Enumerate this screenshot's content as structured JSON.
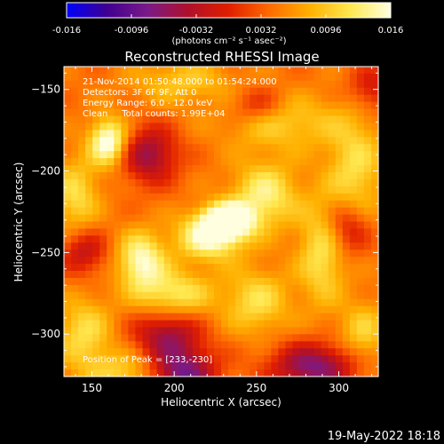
{
  "chart_data": {
    "type": "heatmap",
    "title": "Reconstructed RHESSI Image",
    "xlabel": "Heliocentric X (arcsec)",
    "ylabel": "Heliocentric Y (arcsec)",
    "xlim": [
      133,
      324
    ],
    "ylim": [
      -326,
      -136
    ],
    "x_ticks": [
      150,
      200,
      250,
      300
    ],
    "y_ticks": [
      -150,
      -200,
      -250,
      -300
    ],
    "colorbar": {
      "range": [
        -0.016,
        0.016
      ],
      "ticks": [
        "-0.016",
        "-0.0096",
        "-0.0032",
        "0.0032",
        "0.0096",
        "0.016"
      ],
      "units_label": "(photons cm⁻² s⁻¹ asec⁻²)",
      "colormap": [
        "#0000ff",
        "#400090",
        "#7a1a88",
        "#b0102a",
        "#e01e00",
        "#ff6a00",
        "#ffb000",
        "#ffe850",
        "#ffffe0"
      ]
    },
    "annotations": [
      "21-Nov-2014 01:50:48.000 to 01:54:24.000",
      "Detectors: 3F 6F 9F, Att 0",
      "Energy Range: 6.0 - 12.0 keV",
      "Clean     Total counts: 1.99E+04"
    ],
    "peak_label": "Position of Peak = [233,-230]",
    "peak": [
      233,
      -230
    ],
    "timestamp": "19-May-2022 18:18",
    "features": [
      {
        "x": 233,
        "y": -230,
        "intensity": 0.016,
        "sx": 10,
        "sy": 7
      },
      {
        "x": 222,
        "y": -240,
        "intensity": 0.012,
        "sx": 14,
        "sy": 10
      },
      {
        "x": 160,
        "y": -182,
        "intensity": 0.013,
        "sx": 8,
        "sy": 10
      },
      {
        "x": 255,
        "y": -215,
        "intensity": 0.009,
        "sx": 14,
        "sy": 14
      },
      {
        "x": 180,
        "y": -255,
        "intensity": 0.011,
        "sx": 10,
        "sy": 12
      },
      {
        "x": 200,
        "y": -275,
        "intensity": 0.008,
        "sx": 16,
        "sy": 10
      },
      {
        "x": 145,
        "y": -300,
        "intensity": 0.007,
        "sx": 12,
        "sy": 16
      },
      {
        "x": 290,
        "y": -250,
        "intensity": 0.008,
        "sx": 10,
        "sy": 22
      },
      {
        "x": 310,
        "y": -200,
        "intensity": 0.007,
        "sx": 12,
        "sy": 25
      },
      {
        "x": 250,
        "y": -280,
        "intensity": 0.007,
        "sx": 14,
        "sy": 14
      },
      {
        "x": 265,
        "y": -170,
        "intensity": 0.006,
        "sx": 25,
        "sy": 12
      },
      {
        "x": 140,
        "y": -215,
        "intensity": 0.007,
        "sx": 10,
        "sy": 16
      },
      {
        "x": 315,
        "y": -300,
        "intensity": 0.006,
        "sx": 10,
        "sy": 14
      },
      {
        "x": 170,
        "y": -325,
        "intensity": 0.006,
        "sx": 16,
        "sy": 10
      },
      {
        "x": 205,
        "y": -145,
        "intensity": 0.005,
        "sx": 22,
        "sy": 10
      },
      {
        "x": 185,
        "y": -190,
        "intensity": -0.01,
        "sx": 12,
        "sy": 12
      },
      {
        "x": 205,
        "y": -325,
        "intensity": -0.013,
        "sx": 14,
        "sy": 12
      },
      {
        "x": 195,
        "y": -300,
        "intensity": -0.009,
        "sx": 14,
        "sy": 10
      },
      {
        "x": 285,
        "y": -320,
        "intensity": -0.012,
        "sx": 18,
        "sy": 10
      },
      {
        "x": 305,
        "y": -235,
        "intensity": -0.008,
        "sx": 10,
        "sy": 12
      },
      {
        "x": 250,
        "y": -160,
        "intensity": -0.006,
        "sx": 12,
        "sy": 8
      },
      {
        "x": 145,
        "y": -250,
        "intensity": -0.007,
        "sx": 10,
        "sy": 10
      },
      {
        "x": 320,
        "y": -150,
        "intensity": -0.006,
        "sx": 10,
        "sy": 10
      }
    ]
  }
}
